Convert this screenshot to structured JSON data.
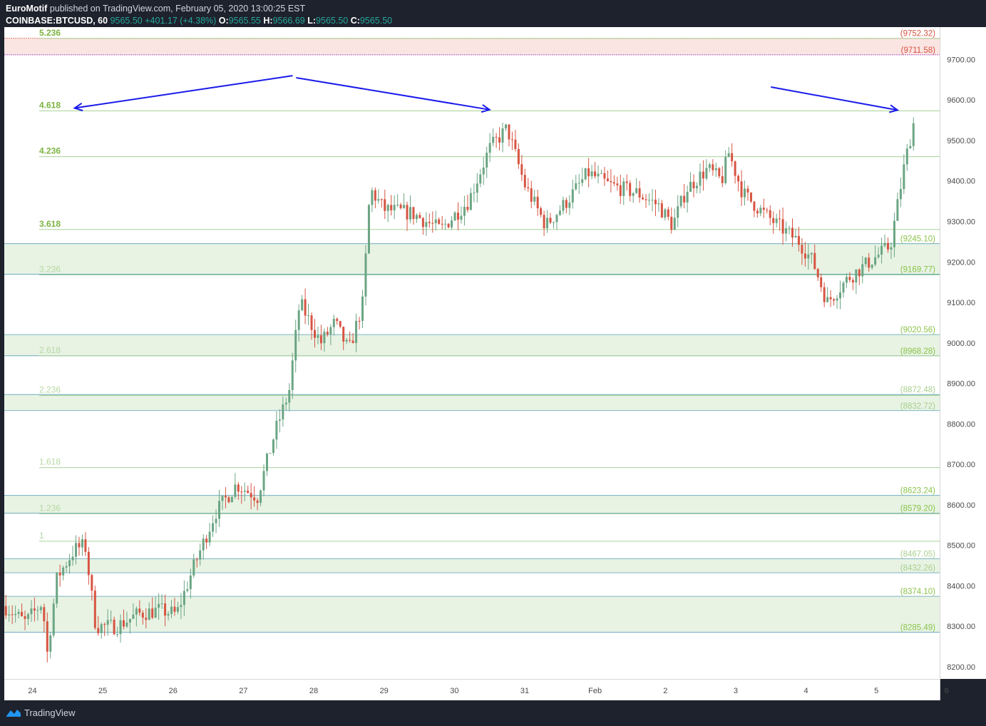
{
  "header": {
    "author": "EuroMotif",
    "published": "published on TradingView.com, February 05, 2020 13:00:25 EST",
    "symbol": "COINBASE:BTCUSD, 60",
    "last": "9565.50",
    "change": "+401.17 (+4.38%)",
    "o_label": "O:",
    "o": "9565.55",
    "h_label": "H:",
    "h": "9566.69",
    "l_label": "L:",
    "l": "9565.50",
    "c_label": "C:",
    "c": "9565.50"
  },
  "footer": {
    "brand": "TradingView"
  },
  "colors": {
    "background": "#ffffff",
    "up": "#6ba583",
    "down": "#d75442",
    "fib_text": "#8bc34a",
    "arrow": "#1a1aeb",
    "zone_green": "#e8f3e4",
    "zone_red": "#fbe5e3"
  },
  "chart_data": {
    "type": "candlestick",
    "ylim": [
      8170,
      9780
    ],
    "xlim": [
      0,
      13.3
    ],
    "x_ticks": [
      {
        "x": 0.4,
        "label": "24"
      },
      {
        "x": 1.4,
        "label": "25"
      },
      {
        "x": 2.4,
        "label": "26"
      },
      {
        "x": 3.4,
        "label": "27"
      },
      {
        "x": 4.4,
        "label": "28"
      },
      {
        "x": 5.4,
        "label": "29"
      },
      {
        "x": 6.4,
        "label": "30"
      },
      {
        "x": 7.4,
        "label": "31"
      },
      {
        "x": 8.4,
        "label": "Feb"
      },
      {
        "x": 9.4,
        "label": "2"
      },
      {
        "x": 10.4,
        "label": "3"
      },
      {
        "x": 11.4,
        "label": "4"
      },
      {
        "x": 12.4,
        "label": "5"
      },
      {
        "x": 13.4,
        "label": "6"
      }
    ],
    "y_ticks": [
      8200,
      8300,
      8400,
      8500,
      8600,
      8700,
      8800,
      8900,
      9000,
      9100,
      9200,
      9300,
      9400,
      9500,
      9600,
      9700
    ],
    "fib_levels": [
      {
        "label": "5.236",
        "value": 9752
      },
      {
        "label": "4.618",
        "value": 9573
      },
      {
        "label": "4.236",
        "value": 9460
      },
      {
        "label": "3.618",
        "value": 9280
      },
      {
        "label": "3.236",
        "value": 9168
      },
      {
        "label": "2.618",
        "value": 8968
      },
      {
        "label": "2.236",
        "value": 8870
      },
      {
        "label": "1.618",
        "value": 8692
      },
      {
        "label": "1.236",
        "value": 8578
      },
      {
        "label": "1",
        "value": 8510
      }
    ],
    "price_labels": [
      {
        "label": "(9752.32)",
        "value": 9752.32,
        "color": "#d75442"
      },
      {
        "label": "(9711.58)",
        "value": 9711.58,
        "color": "#d75442"
      },
      {
        "label": "(9245.10)",
        "value": 9245.1,
        "color": "#8bc34a"
      },
      {
        "label": "(9169.77)",
        "value": 9169.77,
        "color": "#8bc34a"
      },
      {
        "label": "(9020.56)",
        "value": 9020.56,
        "color": "#8bc34a"
      },
      {
        "label": "(8968.28)",
        "value": 8968.28,
        "color": "#8bc34a"
      },
      {
        "label": "(8872.48)",
        "value": 8872.48,
        "color": "#a9cf8e"
      },
      {
        "label": "(8832.72)",
        "value": 8832.72,
        "color": "#a9cf8e"
      },
      {
        "label": "(8623.24)",
        "value": 8623.24,
        "color": "#8bc34a"
      },
      {
        "label": "(8579.20)",
        "value": 8579.2,
        "color": "#8bc34a"
      },
      {
        "label": "(8467.05)",
        "value": 8467.05,
        "color": "#a9cf8e"
      },
      {
        "label": "(8432.26)",
        "value": 8432.26,
        "color": "#a9cf8e"
      },
      {
        "label": "(8374.10)",
        "value": 8374.1,
        "color": "#8bc34a"
      },
      {
        "label": "(8285.49)",
        "value": 8285.49,
        "color": "#8bc34a"
      }
    ],
    "zones": [
      {
        "from": 9711.58,
        "to": 9752.32,
        "color": "red"
      },
      {
        "from": 9169.77,
        "to": 9245.1,
        "color": "green"
      },
      {
        "from": 8968.28,
        "to": 9020.56,
        "color": "green"
      },
      {
        "from": 8832.72,
        "to": 8872.48,
        "color": "green"
      },
      {
        "from": 8579.2,
        "to": 8623.24,
        "color": "green"
      },
      {
        "from": 8432.26,
        "to": 8467.05,
        "color": "green"
      },
      {
        "from": 8285.49,
        "to": 8374.1,
        "color": "green"
      }
    ],
    "arrows": [
      {
        "x1": 4.1,
        "y1": 9660,
        "x2": 1.0,
        "y2": 9580
      },
      {
        "x1": 4.15,
        "y1": 9655,
        "x2": 6.9,
        "y2": 9576
      },
      {
        "x1": 10.9,
        "y1": 9632,
        "x2": 12.7,
        "y2": 9575
      }
    ],
    "price_path": [
      [
        0.0,
        8350
      ],
      [
        0.3,
        8310
      ],
      [
        0.55,
        8360
      ],
      [
        0.6,
        8220
      ],
      [
        0.75,
        8420
      ],
      [
        1.0,
        8490
      ],
      [
        1.15,
        8500
      ],
      [
        1.3,
        8300
      ],
      [
        1.6,
        8300
      ],
      [
        1.9,
        8330
      ],
      [
        2.2,
        8340
      ],
      [
        2.45,
        8330
      ],
      [
        2.7,
        8450
      ],
      [
        3.0,
        8580
      ],
      [
        3.3,
        8650
      ],
      [
        3.6,
        8620
      ],
      [
        3.85,
        8780
      ],
      [
        4.05,
        8880
      ],
      [
        4.2,
        9100
      ],
      [
        4.5,
        9000
      ],
      [
        4.7,
        9050
      ],
      [
        4.9,
        8980
      ],
      [
        5.1,
        9100
      ],
      [
        5.2,
        9380
      ],
      [
        5.4,
        9330
      ],
      [
        5.8,
        9320
      ],
      [
        6.2,
        9280
      ],
      [
        6.6,
        9350
      ],
      [
        6.9,
        9480
      ],
      [
        7.15,
        9530
      ],
      [
        7.4,
        9390
      ],
      [
        7.7,
        9290
      ],
      [
        8.0,
        9350
      ],
      [
        8.3,
        9420
      ],
      [
        8.6,
        9390
      ],
      [
        9.0,
        9370
      ],
      [
        9.3,
        9340
      ],
      [
        9.5,
        9290
      ],
      [
        9.7,
        9380
      ],
      [
        10.0,
        9430
      ],
      [
        10.2,
        9400
      ],
      [
        10.3,
        9470
      ],
      [
        10.5,
        9370
      ],
      [
        10.8,
        9320
      ],
      [
        11.0,
        9290
      ],
      [
        11.3,
        9250
      ],
      [
        11.5,
        9200
      ],
      [
        11.7,
        9100
      ],
      [
        12.0,
        9160
      ],
      [
        12.3,
        9200
      ],
      [
        12.6,
        9240
      ],
      [
        12.8,
        9440
      ],
      [
        12.95,
        9560
      ]
    ]
  }
}
